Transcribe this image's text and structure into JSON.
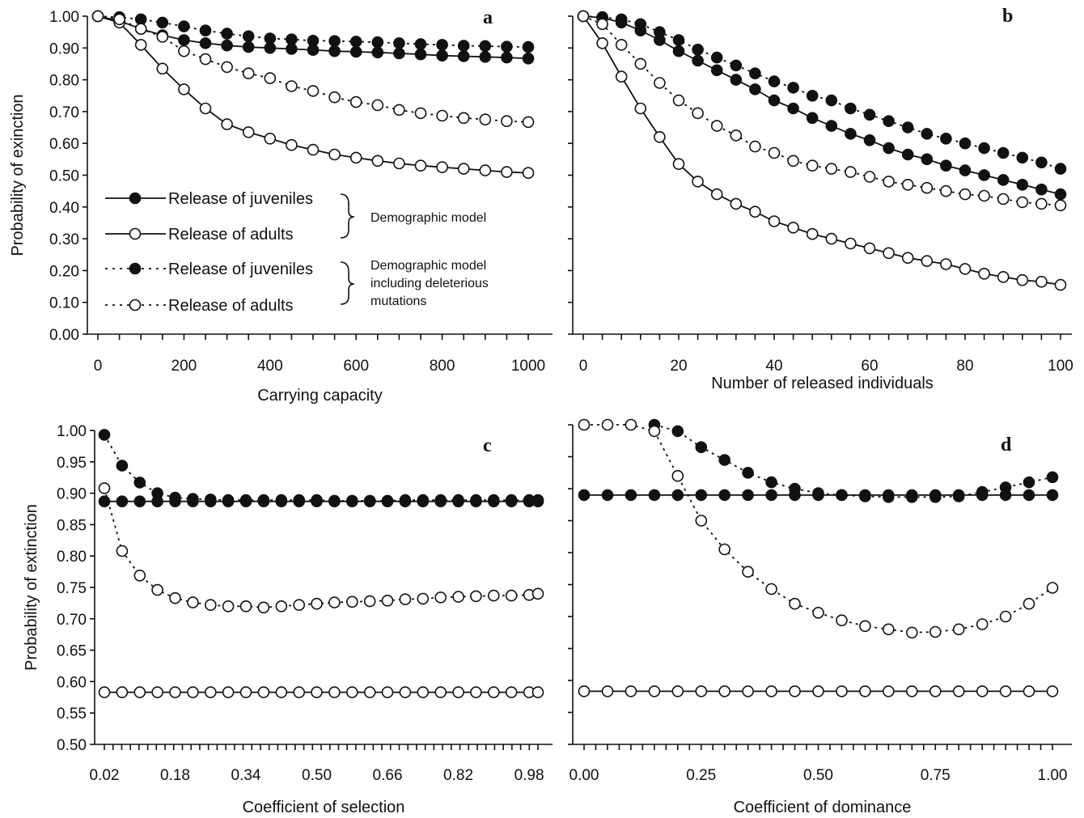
{
  "chart_data": [
    {
      "panel": "a",
      "type": "line",
      "xlabel": "Carrying capacity",
      "ylabel": "Probability of exinction",
      "xlim": [
        0,
        1000
      ],
      "ylim": [
        0.0,
        1.0
      ],
      "x_ticks": [
        "0",
        "200",
        "400",
        "600",
        "800",
        "1000"
      ],
      "y_ticks": [
        "0.00",
        "0.10",
        "0.20",
        "0.30",
        "0.40",
        "0.50",
        "0.60",
        "0.70",
        "0.80",
        "0.90",
        "1.00"
      ],
      "x": [
        0,
        50,
        100,
        150,
        200,
        250,
        300,
        350,
        400,
        450,
        500,
        550,
        600,
        650,
        700,
        750,
        800,
        850,
        900,
        950,
        1000
      ],
      "series": [
        {
          "style": "solid-filled",
          "values": [
            1.0,
            0.985,
            0.96,
            0.94,
            0.925,
            0.915,
            0.908,
            0.903,
            0.9,
            0.897,
            0.894,
            0.89,
            0.888,
            0.886,
            0.883,
            0.88,
            0.876,
            0.874,
            0.872,
            0.87,
            0.867
          ]
        },
        {
          "style": "solid-open",
          "values": [
            1.0,
            0.98,
            0.91,
            0.835,
            0.77,
            0.71,
            0.66,
            0.635,
            0.615,
            0.595,
            0.58,
            0.565,
            0.555,
            0.545,
            0.537,
            0.53,
            0.525,
            0.52,
            0.515,
            0.51,
            0.507
          ]
        },
        {
          "style": "dotted-filled",
          "values": [
            1.0,
            0.997,
            0.99,
            0.98,
            0.968,
            0.955,
            0.945,
            0.937,
            0.93,
            0.927,
            0.923,
            0.922,
            0.92,
            0.918,
            0.915,
            0.912,
            0.91,
            0.907,
            0.906,
            0.904,
            0.903
          ]
        },
        {
          "style": "dotted-open",
          "values": [
            1.0,
            0.99,
            0.96,
            0.935,
            0.89,
            0.865,
            0.84,
            0.82,
            0.805,
            0.78,
            0.765,
            0.745,
            0.73,
            0.72,
            0.705,
            0.695,
            0.687,
            0.68,
            0.675,
            0.67,
            0.667
          ]
        }
      ]
    },
    {
      "panel": "b",
      "type": "line",
      "xlabel": "Number of released individuals",
      "ylabel": "",
      "xlim": [
        0,
        100
      ],
      "ylim": [
        0.0,
        1.0
      ],
      "x_ticks": [
        "0",
        "20",
        "40",
        "60",
        "80",
        "100"
      ],
      "y_ticks": [],
      "x": [
        0,
        4,
        8,
        12,
        16,
        20,
        24,
        28,
        32,
        36,
        40,
        44,
        48,
        52,
        56,
        60,
        64,
        68,
        72,
        76,
        80,
        84,
        88,
        92,
        96,
        100
      ],
      "series": [
        {
          "style": "solid-filled",
          "values": [
            1.0,
            0.995,
            0.98,
            0.955,
            0.925,
            0.89,
            0.86,
            0.83,
            0.8,
            0.77,
            0.735,
            0.71,
            0.68,
            0.655,
            0.63,
            0.61,
            0.585,
            0.565,
            0.55,
            0.53,
            0.515,
            0.5,
            0.485,
            0.47,
            0.455,
            0.44
          ]
        },
        {
          "style": "solid-open",
          "values": [
            1.0,
            0.915,
            0.81,
            0.71,
            0.62,
            0.535,
            0.48,
            0.44,
            0.41,
            0.385,
            0.355,
            0.335,
            0.315,
            0.3,
            0.285,
            0.27,
            0.255,
            0.24,
            0.23,
            0.22,
            0.205,
            0.19,
            0.18,
            0.17,
            0.165,
            0.155
          ]
        },
        {
          "style": "dotted-filled",
          "values": [
            1.0,
            0.997,
            0.99,
            0.975,
            0.95,
            0.925,
            0.895,
            0.87,
            0.845,
            0.82,
            0.795,
            0.775,
            0.75,
            0.735,
            0.71,
            0.69,
            0.67,
            0.65,
            0.63,
            0.615,
            0.6,
            0.585,
            0.57,
            0.555,
            0.54,
            0.52
          ]
        },
        {
          "style": "dotted-open",
          "values": [
            1.0,
            0.975,
            0.91,
            0.85,
            0.79,
            0.735,
            0.695,
            0.655,
            0.625,
            0.59,
            0.57,
            0.545,
            0.53,
            0.52,
            0.51,
            0.495,
            0.48,
            0.47,
            0.46,
            0.45,
            0.44,
            0.435,
            0.425,
            0.415,
            0.41,
            0.405
          ]
        }
      ]
    },
    {
      "panel": "c",
      "type": "line",
      "xlabel": "Coefficient of selection",
      "ylabel": "Probability of extinction",
      "xlim": [
        0.02,
        1.0
      ],
      "ylim": [
        0.5,
        1.0
      ],
      "x_ticks": [
        "0.02",
        "0.18",
        "0.34",
        "0.50",
        "0.66",
        "0.82",
        "0.98"
      ],
      "y_ticks": [
        "0.50",
        "0.55",
        "0.60",
        "0.65",
        "0.70",
        "0.75",
        "0.80",
        "0.85",
        "0.90",
        "0.95",
        "1.00"
      ],
      "x": [
        0.02,
        0.06,
        0.1,
        0.14,
        0.18,
        0.22,
        0.26,
        0.3,
        0.34,
        0.38,
        0.42,
        0.46,
        0.5,
        0.54,
        0.58,
        0.62,
        0.66,
        0.7,
        0.74,
        0.78,
        0.82,
        0.86,
        0.9,
        0.94,
        0.98,
        1.0
      ],
      "series": [
        {
          "style": "solid-filled",
          "values": [
            0.887,
            0.887,
            0.887,
            0.887,
            0.887,
            0.887,
            0.887,
            0.887,
            0.887,
            0.887,
            0.887,
            0.887,
            0.887,
            0.887,
            0.887,
            0.887,
            0.887,
            0.887,
            0.887,
            0.887,
            0.887,
            0.887,
            0.887,
            0.887,
            0.887,
            0.887
          ]
        },
        {
          "style": "solid-open",
          "values": [
            0.583,
            0.583,
            0.583,
            0.583,
            0.583,
            0.583,
            0.583,
            0.583,
            0.583,
            0.583,
            0.583,
            0.583,
            0.583,
            0.583,
            0.583,
            0.583,
            0.583,
            0.583,
            0.583,
            0.583,
            0.583,
            0.583,
            0.583,
            0.583,
            0.583,
            0.583
          ]
        },
        {
          "style": "dotted-filled",
          "values": [
            0.993,
            0.944,
            0.917,
            0.9,
            0.893,
            0.891,
            0.89,
            0.889,
            0.889,
            0.889,
            0.889,
            0.889,
            0.889,
            0.888,
            0.888,
            0.888,
            0.888,
            0.889,
            0.889,
            0.889,
            0.889,
            0.889,
            0.889,
            0.889,
            0.889,
            0.889
          ]
        },
        {
          "style": "dotted-open",
          "values": [
            0.908,
            0.808,
            0.769,
            0.746,
            0.733,
            0.726,
            0.722,
            0.72,
            0.72,
            0.718,
            0.72,
            0.722,
            0.724,
            0.726,
            0.727,
            0.728,
            0.729,
            0.731,
            0.732,
            0.734,
            0.735,
            0.736,
            0.737,
            0.737,
            0.738,
            0.74
          ]
        }
      ]
    },
    {
      "panel": "d",
      "type": "line",
      "xlabel": "Coefficient of dominance",
      "ylabel": "",
      "xlim": [
        0.0,
        1.0
      ],
      "ylim": [
        0.5,
        1.0
      ],
      "x_ticks": [
        "0.00",
        "0.25",
        "0.50",
        "0.75",
        "1.00"
      ],
      "y_ticks": [],
      "x": [
        0.0,
        0.05,
        0.1,
        0.15,
        0.2,
        0.25,
        0.3,
        0.35,
        0.4,
        0.45,
        0.5,
        0.55,
        0.6,
        0.65,
        0.7,
        0.75,
        0.8,
        0.85,
        0.9,
        0.95,
        1.0
      ],
      "series": [
        {
          "style": "solid-filled",
          "values": [
            0.89,
            0.89,
            0.89,
            0.89,
            0.89,
            0.89,
            0.89,
            0.89,
            0.89,
            0.89,
            0.89,
            0.89,
            0.89,
            0.89,
            0.89,
            0.89,
            0.89,
            0.89,
            0.89,
            0.89,
            0.89
          ]
        },
        {
          "style": "solid-open",
          "values": [
            0.583,
            0.583,
            0.583,
            0.583,
            0.583,
            0.583,
            0.583,
            0.583,
            0.583,
            0.583,
            0.583,
            0.583,
            0.583,
            0.583,
            0.583,
            0.583,
            0.583,
            0.583,
            0.583,
            0.583,
            0.583
          ]
        },
        {
          "style": "dotted-filled",
          "values": [
            null,
            null,
            null,
            1.0,
            0.99,
            0.965,
            0.945,
            0.925,
            0.91,
            0.9,
            0.893,
            0.89,
            0.888,
            0.887,
            0.887,
            0.887,
            0.888,
            0.895,
            0.902,
            0.91,
            0.918
          ]
        },
        {
          "style": "dotted-open",
          "values": [
            1.0,
            1.0,
            1.0,
            0.99,
            0.92,
            0.85,
            0.805,
            0.77,
            0.743,
            0.72,
            0.706,
            0.694,
            0.685,
            0.68,
            0.675,
            0.676,
            0.68,
            0.688,
            0.7,
            0.72,
            0.745
          ]
        }
      ]
    }
  ],
  "legend": {
    "items": [
      {
        "label": "Release of juveniles",
        "style": "solid-filled"
      },
      {
        "label": "Release of adults",
        "style": "solid-open"
      },
      {
        "label": "Release of juveniles",
        "style": "dotted-filled"
      },
      {
        "label": "Release of adults",
        "style": "dotted-open"
      }
    ],
    "group_1": "Demographic model",
    "group_2_lines": [
      "Demographic model",
      "including deleterious",
      "mutations"
    ]
  }
}
